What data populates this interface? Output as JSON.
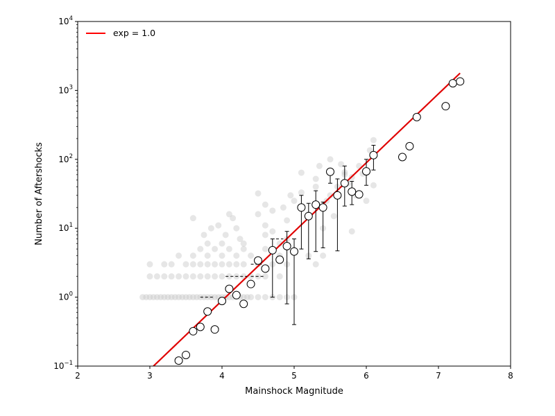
{
  "chart_data": {
    "type": "scatter",
    "title": "",
    "xlabel": "Mainshock Magnitude",
    "ylabel": "Number of Aftershocks",
    "xlim": [
      2,
      8
    ],
    "ylim_log10": [
      -1,
      4
    ],
    "yscale": "log",
    "x_ticks": [
      "2",
      "3",
      "4",
      "5",
      "6",
      "7",
      "8"
    ],
    "y_ticks": [
      {
        "base": "10",
        "exp": "−1"
      },
      {
        "base": "10",
        "exp": "0"
      },
      {
        "base": "10",
        "exp": "1"
      },
      {
        "base": "10",
        "exp": "2"
      },
      {
        "base": "10",
        "exp": "3"
      },
      {
        "base": "10",
        "exp": "4"
      }
    ],
    "grid": false,
    "legend": {
      "position": "top-left",
      "entries": [
        {
          "label": "exp = 1.0",
          "color": "#ff0000"
        }
      ]
    },
    "fit_line": {
      "name": "exp = 1.0",
      "color": "#e00000",
      "x": [
        3.05,
        7.3
      ],
      "y": [
        0.1,
        1780
      ]
    },
    "raw_events": {
      "color": "#c8c8c8",
      "points": [
        [
          2.9,
          1
        ],
        [
          2.95,
          1
        ],
        [
          3.0,
          1
        ],
        [
          3.05,
          1
        ],
        [
          3.1,
          1
        ],
        [
          3.15,
          1
        ],
        [
          3.2,
          1
        ],
        [
          3.25,
          1
        ],
        [
          3.3,
          1
        ],
        [
          3.35,
          1
        ],
        [
          3.4,
          1
        ],
        [
          3.45,
          1
        ],
        [
          3.5,
          1
        ],
        [
          3.55,
          1
        ],
        [
          3.6,
          1
        ],
        [
          3.65,
          1
        ],
        [
          3.7,
          1
        ],
        [
          3.75,
          1
        ],
        [
          3.8,
          1
        ],
        [
          3.85,
          1
        ],
        [
          3.9,
          1
        ],
        [
          3.95,
          1
        ],
        [
          4.0,
          1
        ],
        [
          4.05,
          1
        ],
        [
          4.1,
          1
        ],
        [
          4.15,
          1
        ],
        [
          4.2,
          1
        ],
        [
          4.25,
          1
        ],
        [
          4.3,
          1
        ],
        [
          4.35,
          1
        ],
        [
          4.4,
          1
        ],
        [
          4.5,
          1
        ],
        [
          4.6,
          1
        ],
        [
          4.7,
          1
        ],
        [
          4.8,
          1
        ],
        [
          4.9,
          1
        ],
        [
          5.0,
          1
        ],
        [
          3.0,
          2
        ],
        [
          3.1,
          2
        ],
        [
          3.2,
          2
        ],
        [
          3.3,
          2
        ],
        [
          3.4,
          2
        ],
        [
          3.5,
          2
        ],
        [
          3.6,
          2
        ],
        [
          3.7,
          2
        ],
        [
          3.8,
          2
        ],
        [
          3.9,
          2
        ],
        [
          4.0,
          2
        ],
        [
          4.1,
          2
        ],
        [
          4.2,
          2
        ],
        [
          4.3,
          2
        ],
        [
          4.4,
          2
        ],
        [
          4.5,
          2
        ],
        [
          4.6,
          2
        ],
        [
          4.8,
          2
        ],
        [
          3.0,
          3
        ],
        [
          3.2,
          3
        ],
        [
          3.3,
          3
        ],
        [
          3.5,
          3
        ],
        [
          3.6,
          3
        ],
        [
          3.7,
          3
        ],
        [
          3.8,
          3
        ],
        [
          3.9,
          3
        ],
        [
          4.0,
          3
        ],
        [
          4.1,
          3
        ],
        [
          4.2,
          3
        ],
        [
          4.3,
          3
        ],
        [
          4.5,
          3
        ],
        [
          4.7,
          3
        ],
        [
          4.9,
          3
        ],
        [
          5.3,
          3
        ],
        [
          3.4,
          4
        ],
        [
          3.6,
          4
        ],
        [
          3.8,
          4
        ],
        [
          4.0,
          4
        ],
        [
          4.2,
          4
        ],
        [
          4.4,
          4
        ],
        [
          4.8,
          4
        ],
        [
          5.2,
          4
        ],
        [
          5.4,
          4
        ],
        [
          3.7,
          5
        ],
        [
          3.9,
          5
        ],
        [
          4.1,
          5
        ],
        [
          4.3,
          5
        ],
        [
          4.6,
          5
        ],
        [
          4.8,
          6
        ],
        [
          3.8,
          6
        ],
        [
          4.0,
          6
        ],
        [
          4.3,
          6
        ],
        [
          4.9,
          7
        ],
        [
          4.25,
          7
        ],
        [
          4.6,
          8
        ],
        [
          3.75,
          8
        ],
        [
          4.05,
          8
        ],
        [
          3.85,
          10
        ],
        [
          4.2,
          10
        ],
        [
          4.7,
          9
        ],
        [
          5.4,
          10
        ],
        [
          3.95,
          11
        ],
        [
          4.6,
          11
        ],
        [
          4.9,
          13
        ],
        [
          3.6,
          14
        ],
        [
          4.15,
          14
        ],
        [
          4.1,
          16
        ],
        [
          4.5,
          16
        ],
        [
          5.2,
          16
        ],
        [
          4.6,
          22
        ],
        [
          4.7,
          18
        ],
        [
          4.85,
          20
        ],
        [
          5.0,
          25
        ],
        [
          4.5,
          32
        ],
        [
          4.95,
          30
        ],
        [
          5.1,
          33
        ],
        [
          5.3,
          40
        ],
        [
          5.5,
          30
        ],
        [
          5.6,
          40
        ],
        [
          5.4,
          20
        ],
        [
          5.8,
          55
        ],
        [
          5.9,
          80
        ],
        [
          5.65,
          85
        ],
        [
          5.75,
          45
        ],
        [
          5.3,
          52
        ],
        [
          5.1,
          64
        ],
        [
          5.35,
          80
        ],
        [
          5.5,
          100
        ],
        [
          5.7,
          65
        ],
        [
          5.8,
          9
        ],
        [
          5.55,
          15
        ],
        [
          6.1,
          190
        ],
        [
          6.05,
          135
        ],
        [
          6.0,
          25
        ],
        [
          6.1,
          42
        ],
        [
          5.95,
          62
        ],
        [
          5.85,
          30
        ],
        [
          5.7,
          60
        ],
        [
          5.45,
          25
        ]
      ]
    },
    "binned": {
      "points": [
        {
          "x": 3.4,
          "y": 0.12
        },
        {
          "x": 3.5,
          "y": 0.145
        },
        {
          "x": 3.6,
          "y": 0.32
        },
        {
          "x": 3.7,
          "y": 0.37
        },
        {
          "x": 3.8,
          "y": 0.62
        },
        {
          "x": 3.9,
          "y": 0.34
        },
        {
          "x": 4.0,
          "y": 0.88
        },
        {
          "x": 4.1,
          "y": 1.32
        },
        {
          "x": 4.2,
          "y": 1.07
        },
        {
          "x": 4.3,
          "y": 0.8
        },
        {
          "x": 4.4,
          "y": 1.55
        },
        {
          "x": 4.5,
          "y": 3.4
        },
        {
          "x": 4.6,
          "y": 2.6
        },
        {
          "x": 4.7,
          "y": 4.8,
          "lo": 1.0,
          "hi": 7.0
        },
        {
          "x": 4.8,
          "y": 3.5
        },
        {
          "x": 4.9,
          "y": 5.5,
          "lo": 0.8,
          "hi": 9.0
        },
        {
          "x": 5.0,
          "y": 4.6,
          "lo": 0.4,
          "hi": 7.0
        },
        {
          "x": 5.1,
          "y": 20,
          "lo": 5.0,
          "hi": 30
        },
        {
          "x": 5.2,
          "y": 15,
          "lo": 3.6,
          "hi": 23
        },
        {
          "x": 5.3,
          "y": 22,
          "lo": 4.6,
          "hi": 35
        },
        {
          "x": 5.4,
          "y": 20,
          "lo": 5.2,
          "hi": 24
        },
        {
          "x": 5.5,
          "y": 66,
          "lo": 45,
          "hi": 66
        },
        {
          "x": 5.6,
          "y": 30,
          "lo": 4.7,
          "hi": 52
        },
        {
          "x": 5.7,
          "y": 45,
          "lo": 21,
          "hi": 80
        },
        {
          "x": 5.8,
          "y": 34,
          "lo": 22,
          "hi": 48
        },
        {
          "x": 5.9,
          "y": 31
        },
        {
          "x": 6.0,
          "y": 67,
          "lo": 42,
          "hi": 100
        },
        {
          "x": 6.1,
          "y": 115,
          "lo": 70,
          "hi": 160
        },
        {
          "x": 6.5,
          "y": 108
        },
        {
          "x": 6.6,
          "y": 155
        },
        {
          "x": 6.7,
          "y": 410
        },
        {
          "x": 7.1,
          "y": 590
        },
        {
          "x": 7.2,
          "y": 1270
        },
        {
          "x": 7.3,
          "y": 1350
        }
      ],
      "dashes": [
        {
          "x0": 3.7,
          "x1": 3.9,
          "y": 1
        },
        {
          "x0": 4.05,
          "x1": 4.35,
          "y": 2
        },
        {
          "x0": 4.4,
          "x1": 4.6,
          "y": 2
        },
        {
          "x0": 4.4,
          "x1": 4.55,
          "y": 3
        },
        {
          "x0": 4.75,
          "x1": 4.85,
          "y": 7
        }
      ]
    }
  }
}
